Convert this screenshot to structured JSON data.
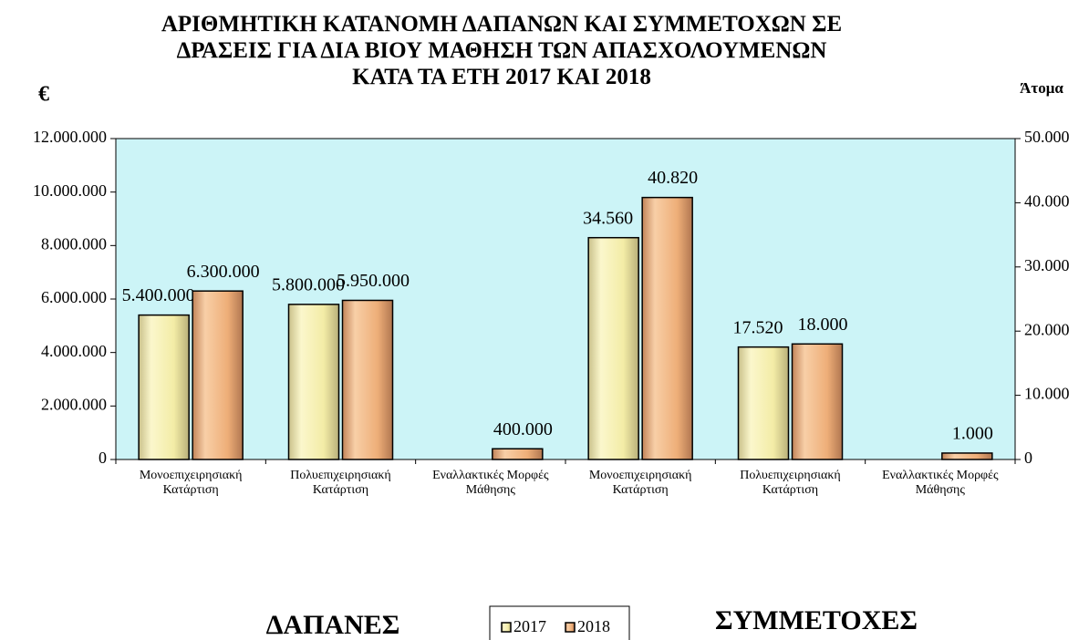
{
  "chart_data": {
    "type": "bar",
    "title": "ΑΡΙΘΜΗΤΙΚΗ ΚΑΤΑΝΟΜΗ ΔΑΠΑΝΩΝ ΚΑΙ ΣΥΜΜΕΤΟΧΩΝ ΣΕ\nΔΡΑΣΕΙΣ ΓΙΑ ΔΙΑ ΒΙΟΥ ΜΑΘΗΣΗ ΤΩΝ ΑΠΑΣΧΟΛΟΥΜΕΝΩΝ\nΚΑΤΑ ΤΑ ΕΤΗ 2017 ΚΑΙ 2018",
    "y_label": "€",
    "y2_label": "Άτομα",
    "annotations": [
      "ΔΑΠΑΝΕΣ",
      "ΣΥΜΜΕΤΟΧΕΣ"
    ],
    "categories": [
      "Μονοεπιχειρησιακή Κατάρτιση",
      "Πολυεπιχειρησιακή Κατάρτιση",
      "Εναλλακτικές Μορφές Μάθησης",
      "Μονοεπιχειρησιακή Κατάρτιση",
      "Πολυεπιχειρησιακή Κατάρτιση",
      "Εναλλακτικές Μορφές Μάθησης"
    ],
    "category_axis": [
      "y",
      "y",
      "y",
      "y2",
      "y2",
      "y2"
    ],
    "series": [
      {
        "name": "2017",
        "color": "#f3eca6",
        "values": [
          5400000,
          5800000,
          null,
          34560,
          17520,
          null
        ],
        "value_labels": [
          "5.400.000",
          "5.800.000",
          null,
          "34.560",
          "17.520",
          null
        ]
      },
      {
        "name": "2018",
        "color": "#eeae78",
        "values": [
          6300000,
          5950000,
          400000,
          40820,
          18000,
          1000
        ],
        "value_labels": [
          "6.300.000",
          "5.950.000",
          "400.000",
          "40.820",
          "18.000",
          "1.000"
        ]
      }
    ],
    "ylim": [
      0,
      12000000
    ],
    "yticks": [
      0,
      {
        "value": 2000000,
        "label": "2.000.000"
      },
      {
        "value": 4000000,
        "label": "4.000.000"
      },
      {
        "value": 6000000,
        "label": "6.000.000"
      },
      {
        "value": 8000000,
        "label": "8.000.000"
      },
      {
        "value": 10000000,
        "label": "10.000.000"
      },
      {
        "value": 12000000,
        "label": "12.000.000"
      }
    ],
    "y2lim": [
      0,
      50000
    ],
    "y2ticks": [
      0,
      {
        "value": 10000,
        "label": "10.000"
      },
      {
        "value": 20000,
        "label": "20.000"
      },
      {
        "value": 30000,
        "label": "30.000"
      },
      {
        "value": 40000,
        "label": "40.000"
      },
      {
        "value": 50000,
        "label": "50.000"
      }
    ],
    "plot_background": "#ccf4f7"
  }
}
